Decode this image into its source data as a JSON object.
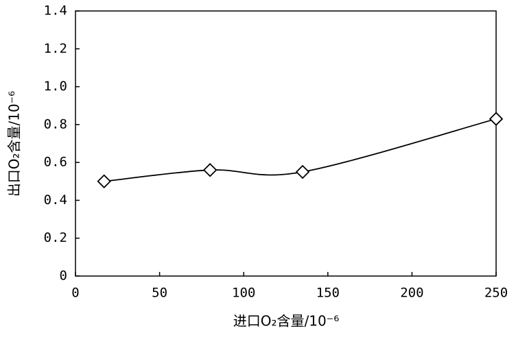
{
  "chart_data": {
    "type": "line",
    "x_label": "进口O₂含量/10⁻⁶",
    "y_label": "出口O₂含量/10⁻⁶",
    "x": [
      17,
      80,
      135,
      250
    ],
    "series": [
      {
        "color": "#000000",
        "values": [
          0.5,
          0.56,
          0.55,
          0.83
        ]
      }
    ],
    "xlim": [
      0,
      250
    ],
    "xticks": [
      0,
      50,
      100,
      150,
      200,
      250
    ],
    "ylim": [
      0,
      1.4
    ],
    "yticks": [
      0,
      0.2,
      0.4,
      0.6,
      0.8,
      {
        "value": 1,
        "label": "1.0"
      },
      1.2,
      1.4
    ],
    "marker": "diamond"
  }
}
